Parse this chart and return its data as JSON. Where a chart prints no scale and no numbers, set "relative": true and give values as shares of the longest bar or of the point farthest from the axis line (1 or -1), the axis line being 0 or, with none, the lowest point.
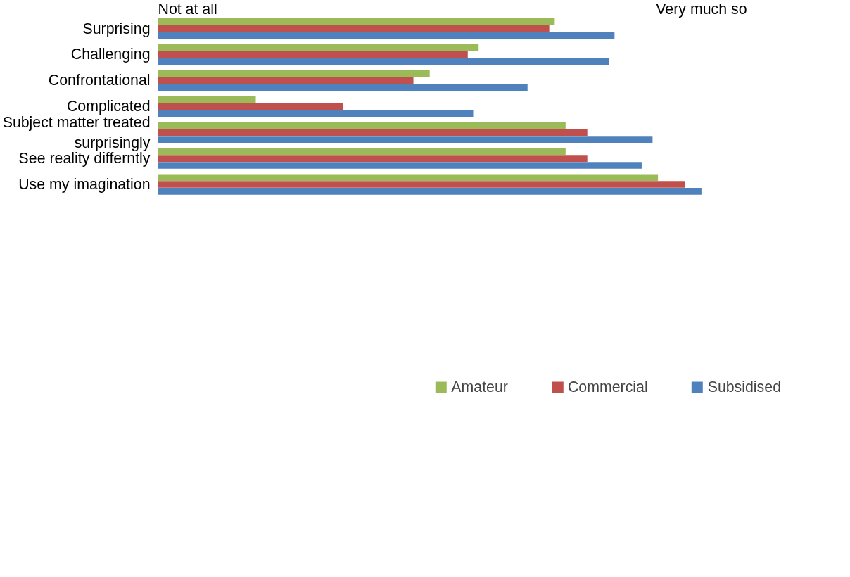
{
  "chart_data": {
    "type": "bar",
    "orientation": "horizontal",
    "relative": true,
    "legend": "bottom",
    "categories": [
      "Surprising",
      "Challenging",
      "Confrontational",
      "Complicated",
      "Subject matter treated surprisingly",
      "See reality differntly",
      "Use my imagination"
    ],
    "series": [
      {
        "name": "Amateur",
        "color": "#9bbb59",
        "values": [
          0.73,
          0.59,
          0.5,
          0.18,
          0.75,
          0.75,
          0.92
        ]
      },
      {
        "name": "Commercial",
        "color": "#c0504d",
        "values": [
          0.72,
          0.57,
          0.47,
          0.34,
          0.79,
          0.79,
          0.97
        ]
      },
      {
        "name": "Subsidised",
        "color": "#4f81bd",
        "values": [
          0.84,
          0.83,
          0.68,
          0.58,
          0.91,
          0.89,
          1.0
        ]
      }
    ],
    "annotations": [
      "Not at all",
      "Very much so"
    ]
  }
}
